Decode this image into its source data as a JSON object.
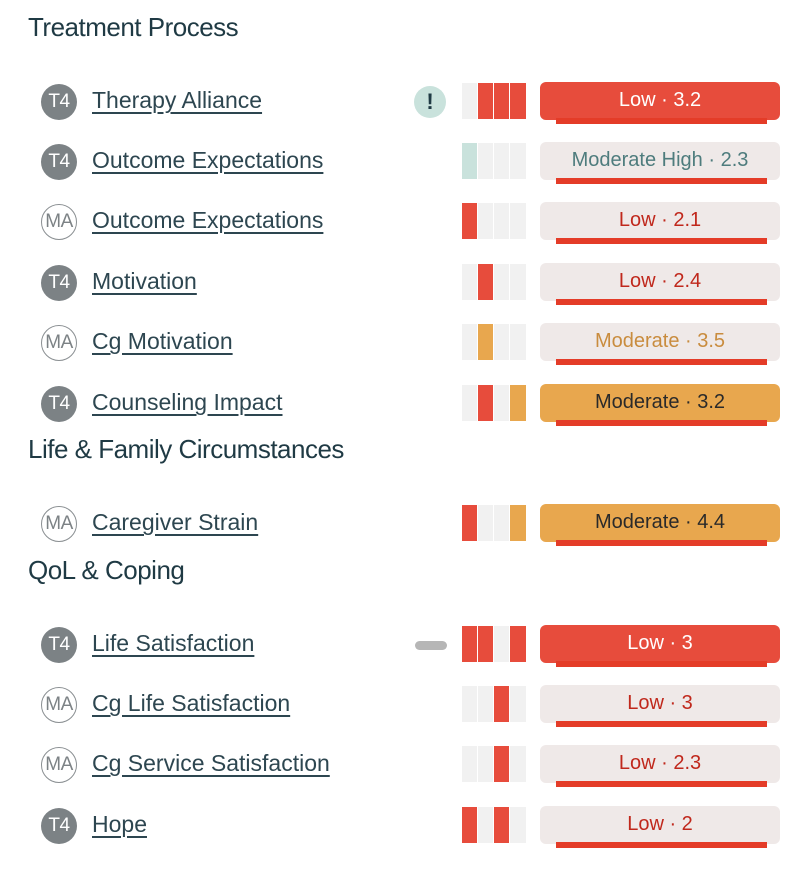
{
  "sections": [
    {
      "title": "Treatment Process",
      "rows": [
        {
          "badge": "T4",
          "label": "Therapy Alliance",
          "icon": "alert",
          "spark": [
            "empty",
            "red",
            "red",
            "red"
          ],
          "score_text": "Low · 3.2",
          "score_style": "red-filled"
        },
        {
          "badge": "T4",
          "label": "Outcome Expectations",
          "icon": "",
          "spark": [
            "teal",
            "empty",
            "empty",
            "empty"
          ],
          "score_text": "Moderate High · 2.3",
          "score_style": "light t-teal"
        },
        {
          "badge": "MA",
          "label": "Outcome Expectations",
          "icon": "",
          "spark": [
            "red",
            "empty",
            "empty",
            "empty"
          ],
          "score_text": "Low · 2.1",
          "score_style": "light t-red"
        },
        {
          "badge": "T4",
          "label": "Motivation",
          "icon": "",
          "spark": [
            "empty",
            "red",
            "empty",
            "empty"
          ],
          "score_text": "Low · 2.4",
          "score_style": "light t-red"
        },
        {
          "badge": "MA",
          "label": "Cg Motivation",
          "icon": "",
          "spark": [
            "empty",
            "orange",
            "empty",
            "empty"
          ],
          "score_text": "Moderate · 3.5",
          "score_style": "light t-orange"
        },
        {
          "badge": "T4",
          "label": "Counseling Impact",
          "icon": "",
          "spark": [
            "empty",
            "red",
            "empty",
            "orange"
          ],
          "score_text": "Moderate · 3.2",
          "score_style": "orange-filled"
        }
      ]
    },
    {
      "title": "Life & Family Circumstances",
      "rows": [
        {
          "badge": "MA",
          "label": "Caregiver Strain",
          "icon": "",
          "spark": [
            "red",
            "empty",
            "empty",
            "orange"
          ],
          "score_text": "Moderate · 4.4",
          "score_style": "orange-filled"
        }
      ]
    },
    {
      "title": "QoL & Coping",
      "rows": [
        {
          "badge": "T4",
          "label": "Life Satisfaction",
          "icon": "dash",
          "spark": [
            "red",
            "red",
            "empty",
            "red"
          ],
          "score_text": "Low · 3",
          "score_style": "red-filled"
        },
        {
          "badge": "MA",
          "label": "Cg Life Satisfaction",
          "icon": "",
          "spark": [
            "empty",
            "empty",
            "red",
            "empty"
          ],
          "score_text": "Low · 3",
          "score_style": "light t-red"
        },
        {
          "badge": "MA",
          "label": "Cg Service Satisfaction",
          "icon": "",
          "spark": [
            "empty",
            "empty",
            "red",
            "empty"
          ],
          "score_text": "Low · 2.3",
          "score_style": "light t-red"
        },
        {
          "badge": "T4",
          "label": "Hope",
          "icon": "",
          "spark": [
            "red",
            "empty",
            "red",
            "empty"
          ],
          "score_text": "Low · 2",
          "score_style": "light t-red"
        }
      ]
    }
  ]
}
